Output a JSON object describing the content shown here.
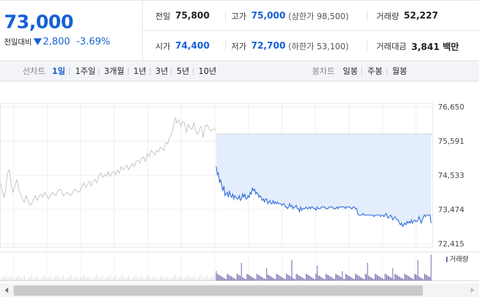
{
  "summary": {
    "current_price": "73,000",
    "change_label": "전일대비",
    "change_amount": "2,800",
    "change_rate": "-3.69%",
    "prev_close_label": "전일",
    "prev_close": "75,800",
    "high_label": "고가",
    "high": "75,000",
    "upper_limit": "(상한가 98,500)",
    "volume_label": "거래량",
    "volume": "52,227",
    "open_label": "시가",
    "open": "74,400",
    "low_label": "저가",
    "low": "72,700",
    "lower_limit": "(하한가 53,100)",
    "amount_label": "거래대금",
    "amount": "3,841 백만",
    "down_color": "#1560d6",
    "down_icon": "down-triangle-icon"
  },
  "toolbar": {
    "line_chart_label": "선차트",
    "periods": [
      "1일",
      "1주일",
      "3개월",
      "1년",
      "3년",
      "5년",
      "10년"
    ],
    "active_period": "1일",
    "candle_chart_label": "봉차트",
    "candle_periods": [
      "일봉",
      "주봉",
      "월봉"
    ]
  },
  "chart_data": {
    "type": "line",
    "y_ticks": [
      "76,650",
      "75,591",
      "74,533",
      "73,474",
      "72,415"
    ],
    "ylim": [
      72415,
      76650
    ],
    "prev_close_reference": 75800,
    "grid": true,
    "colors": {
      "previous_day": "#c4c4c4",
      "today": "#3a6fd8",
      "today_fill": "#e3edfb",
      "volume": "#6f5fa8"
    },
    "previous_day": [
      74300,
      74100,
      73850,
      74050,
      74600,
      74700,
      74250,
      74000,
      74200,
      74400,
      74100,
      73950,
      73800,
      73700,
      73900,
      73750,
      73600,
      73650,
      73800,
      73900,
      73750,
      73900,
      73950,
      73850,
      74000,
      73900,
      73800,
      73900,
      74000,
      73950,
      73900,
      74050,
      74100,
      74050,
      73900,
      73950,
      74000,
      73950,
      73900,
      74000,
      74100,
      74050,
      74000,
      74050,
      74200,
      74300,
      74150,
      74250,
      74350,
      74200,
      74350,
      74400,
      74300,
      74500,
      74600,
      74450,
      74550,
      74500,
      74650,
      74500,
      74600,
      74650,
      74550,
      74700,
      74600,
      74800,
      74700,
      74750,
      74850,
      74700,
      74800,
      74900,
      74800,
      74950,
      75000,
      74900,
      75050,
      75100,
      74950,
      75200,
      75100,
      75300,
      75250,
      75150,
      75300,
      75250,
      75400,
      75350,
      75300,
      75550,
      75500,
      75700,
      75800,
      76050,
      76300,
      76150,
      76250,
      76050,
      76200,
      76150,
      75850,
      76100,
      76000,
      75950,
      76150,
      75900,
      75800,
      75950,
      76050,
      75700,
      76050,
      76100,
      76000,
      75900,
      75950,
      75950,
      75950
    ],
    "today": [
      74800,
      74550,
      74600,
      74300,
      74400,
      74200,
      74050,
      74200,
      73900,
      73950,
      74000,
      73850,
      74050,
      73900,
      73850,
      73950,
      73800,
      73900,
      73850,
      73800,
      73800,
      73900,
      73750,
      73800,
      73950,
      73850,
      73950,
      73800,
      73800,
      73900,
      73850,
      74000,
      73950,
      74150,
      74050,
      74100,
      73950,
      74000,
      73950,
      73850,
      73900,
      73850,
      73750,
      73800,
      73700,
      73800,
      73800,
      73650,
      73700,
      73750,
      73650,
      73650,
      73750,
      73650,
      73700,
      73650,
      73700,
      73650,
      73650,
      73650,
      73600,
      73650,
      73650,
      73550,
      73550,
      73500,
      73550,
      73650,
      73550,
      73600,
      73500,
      73550,
      73550,
      73600,
      73500,
      73500,
      73400,
      73550,
      73450,
      73500,
      73500,
      73500,
      73550,
      73500,
      73500,
      73550,
      73500,
      73550,
      73550,
      73500,
      73500,
      73450,
      73550,
      73500,
      73500,
      73500,
      73550,
      73550,
      73550,
      73550,
      73500,
      73500,
      73500,
      73550,
      73550,
      73550,
      73550,
      73500,
      73500,
      73500,
      73550,
      73500,
      73550,
      73550,
      73550,
      73550,
      73550,
      73550,
      73500,
      73550,
      73550,
      73550,
      73550,
      73500,
      73500,
      73550,
      73550,
      73500,
      73500,
      73350,
      73300,
      73300,
      73300,
      73300,
      73350,
      73300,
      73300,
      73300,
      73300,
      73300,
      73300,
      73300,
      73300,
      73300,
      73250,
      73300,
      73300,
      73300,
      73300,
      73300,
      73250,
      73300,
      73300,
      73250,
      73300,
      73350,
      73250,
      73200,
      73250,
      73300,
      73250,
      73150,
      73200,
      73250,
      73200,
      73150,
      73150,
      73050,
      73000,
      73050,
      72950,
      73000,
      73050,
      73000,
      73100,
      73050,
      73100,
      73050,
      73150,
      73050,
      73100,
      73150,
      73100,
      73100,
      73150,
      73250,
      73150,
      73050,
      73150,
      73250,
      73300,
      73250,
      73300,
      73300,
      73300,
      73300,
      73050
    ],
    "volume_legend": "거래량"
  }
}
